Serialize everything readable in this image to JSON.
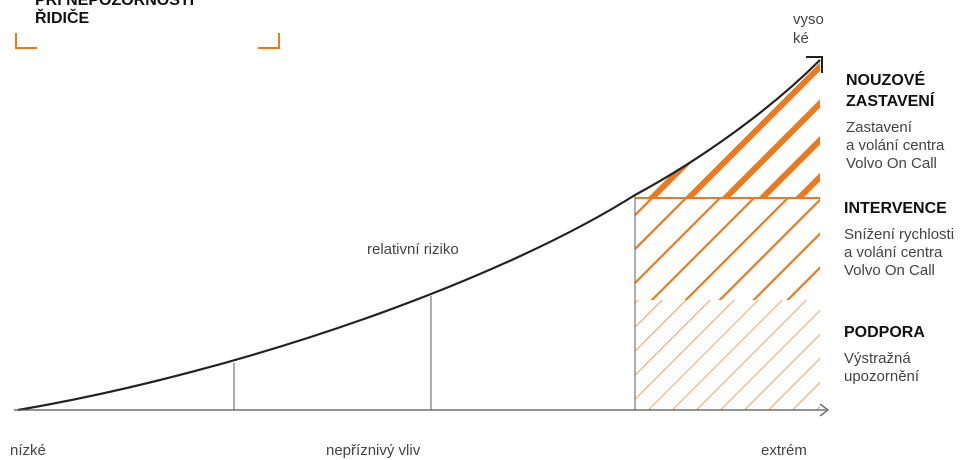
{
  "heading": {
    "line1": "PŘI NEPOZORNOSTI",
    "line2": "ŘIDIČE"
  },
  "axis": {
    "y_top_label_line1": "vyso",
    "y_top_label_line2": "ké",
    "x_low": "nízké",
    "x_mid": "nepříznivý vliv",
    "x_high": "extrém",
    "curve_label": "relativní riziko"
  },
  "sections": [
    {
      "title_lines": [
        "NOUZOVÉ",
        "ZASTAVENÍ"
      ],
      "desc_lines": [
        "Zastavení",
        "a volání centra",
        "Volvo On Call"
      ]
    },
    {
      "title_lines": [
        "INTERVENCE"
      ],
      "desc_lines": [
        "Snížení rychlosti",
        "a volání centra",
        "Volvo On Call"
      ]
    },
    {
      "title_lines": [
        "PODPORA"
      ],
      "desc_lines": [
        "Výstražná",
        "upozornění"
      ]
    }
  ],
  "colors": {
    "accent": "#ea7a1f",
    "axis": "#555555",
    "curve": "#222222"
  },
  "icons": {
    "corner_brackets": "orange-corner-bracket-icon",
    "axis_arrows": "chevron-arrow-icon"
  }
}
